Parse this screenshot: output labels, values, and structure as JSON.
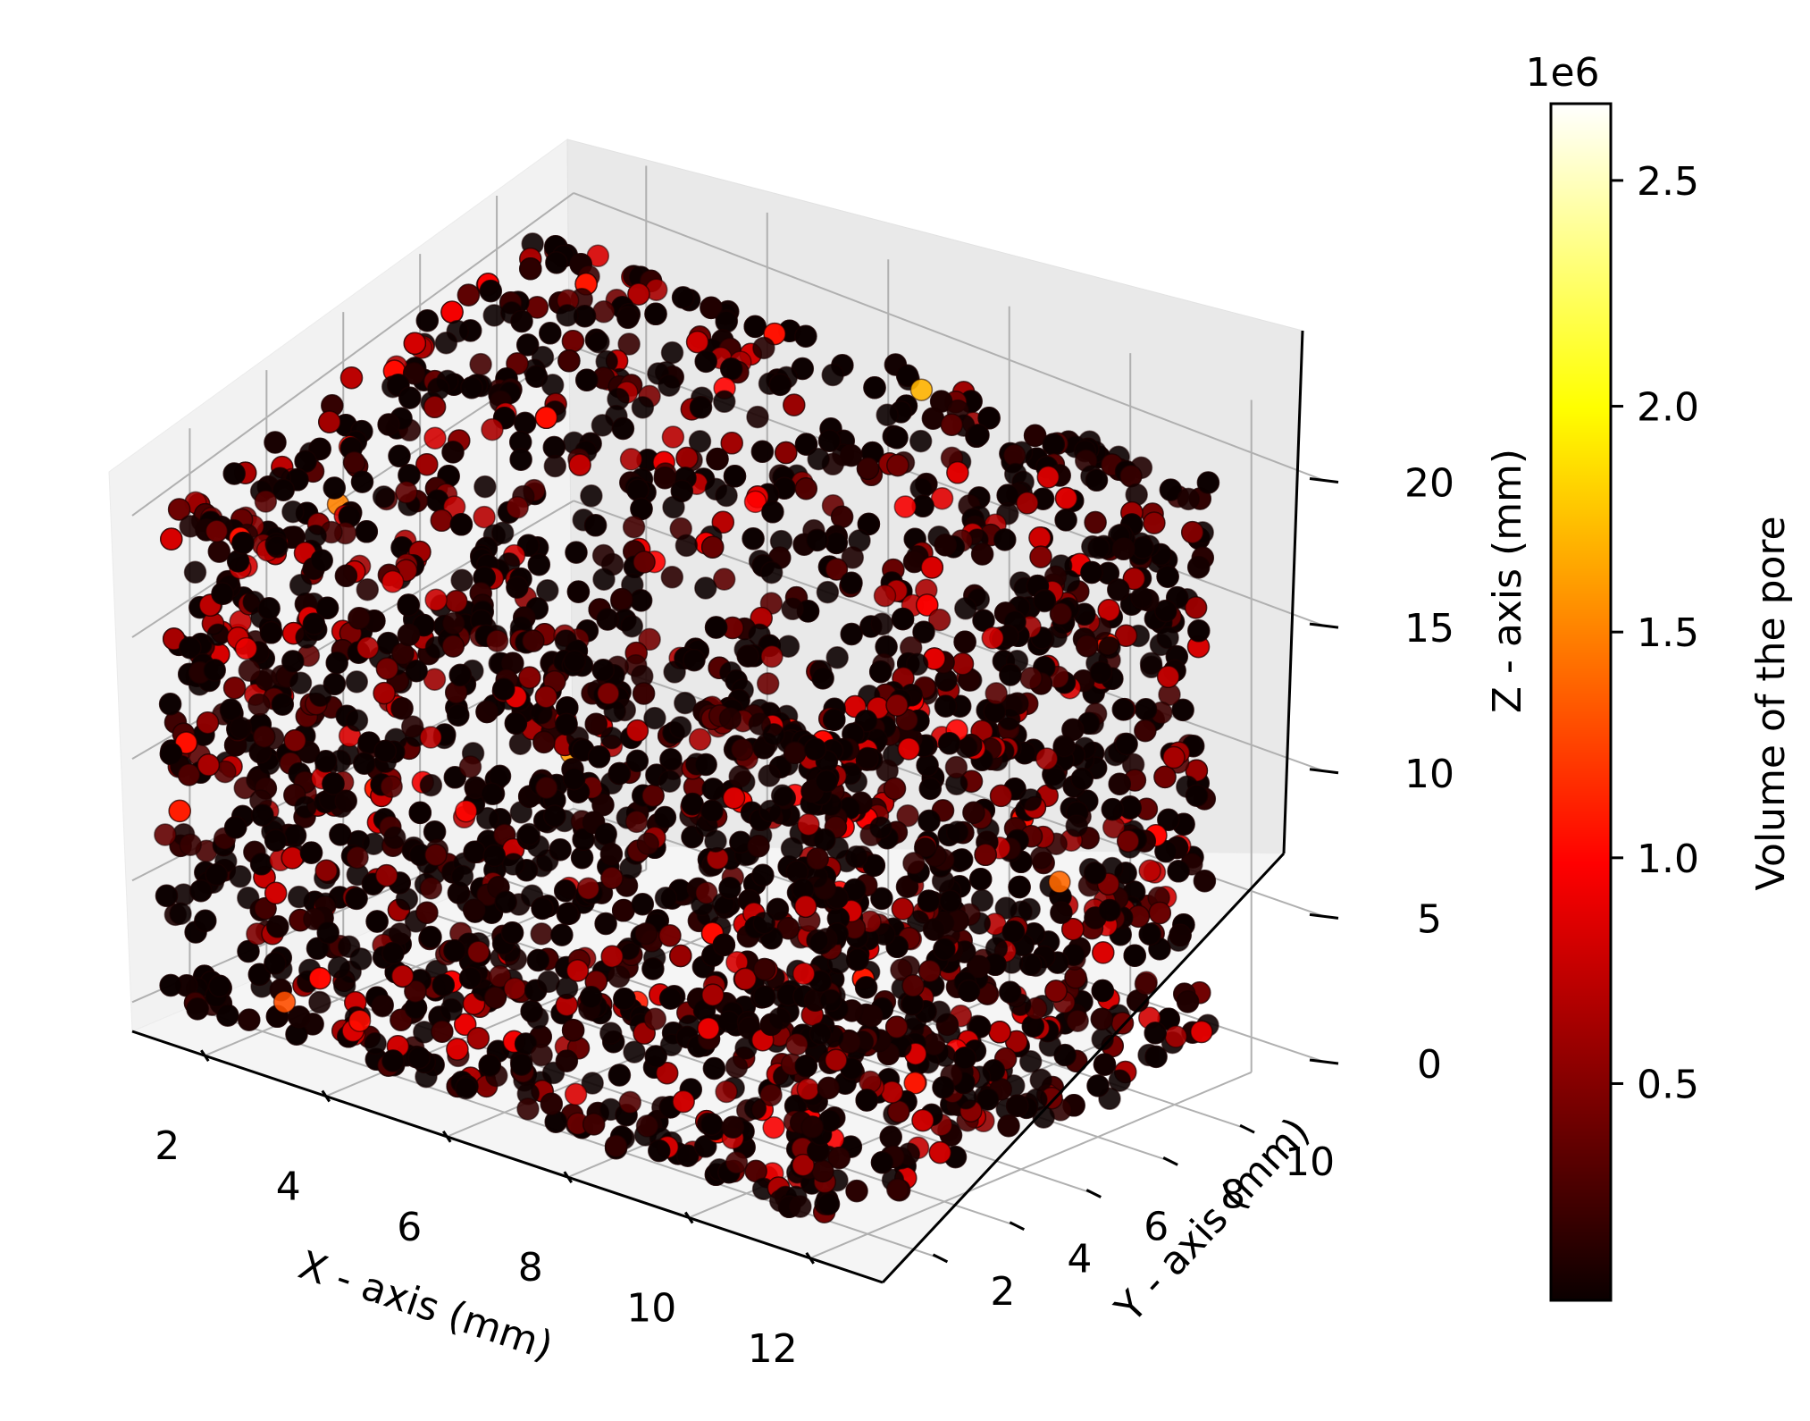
{
  "chart_data": {
    "type": "scatter3d",
    "title": "",
    "xlabel": "X - axis (mm)",
    "ylabel": "Y - axis (mm)",
    "zlabel": "Z - axis (mm)",
    "xlim": [
      0.8,
      13.2
    ],
    "ylim": [
      0.5,
      12.0
    ],
    "zlim": [
      -1.2,
      21.8
    ],
    "x_ticks": [
      "2",
      "4",
      "6",
      "8",
      "10",
      "12"
    ],
    "y_ticks": [
      "2",
      "4",
      "6",
      "8",
      "10"
    ],
    "z_ticks": [
      "0",
      "5",
      "10",
      "15",
      "20"
    ],
    "grid": true,
    "colormap": "hot",
    "colorbar": {
      "label": "Volume of the pore",
      "offset_text": "1e6",
      "ticks": [
        "0.5",
        "1.0",
        "1.5",
        "2.0",
        "2.5"
      ],
      "range": [
        0.02,
        2.67
      ]
    },
    "points_description": "dense cloud of pores filling the cube 1-12 mm (x), 1-11 mm (y), 0-20 mm (z); most volumes near 0, few up to about 1.7e6",
    "point_extent": {
      "x": [
        1.0,
        12.0
      ],
      "y": [
        1.0,
        11.0
      ],
      "z": [
        0.0,
        20.0
      ]
    },
    "highlight_points": [
      {
        "x": 7.5,
        "y": 10.5,
        "z": 20,
        "v": 1.7
      },
      {
        "x": 2.3,
        "y": 3.5,
        "z": 18.5,
        "v": 1.5
      },
      {
        "x": 5.2,
        "y": 5.0,
        "z": 10,
        "v": 1.6
      },
      {
        "x": 12.0,
        "y": 7.0,
        "z": 9,
        "v": 1.4
      },
      {
        "x": 3.0,
        "y": 1.0,
        "z": 1.5,
        "v": 1.3
      },
      {
        "x": 9.0,
        "y": 6.0,
        "z": 7,
        "v": 1.0
      },
      {
        "x": 6.0,
        "y": 1.0,
        "z": 12,
        "v": 1.0
      }
    ]
  }
}
